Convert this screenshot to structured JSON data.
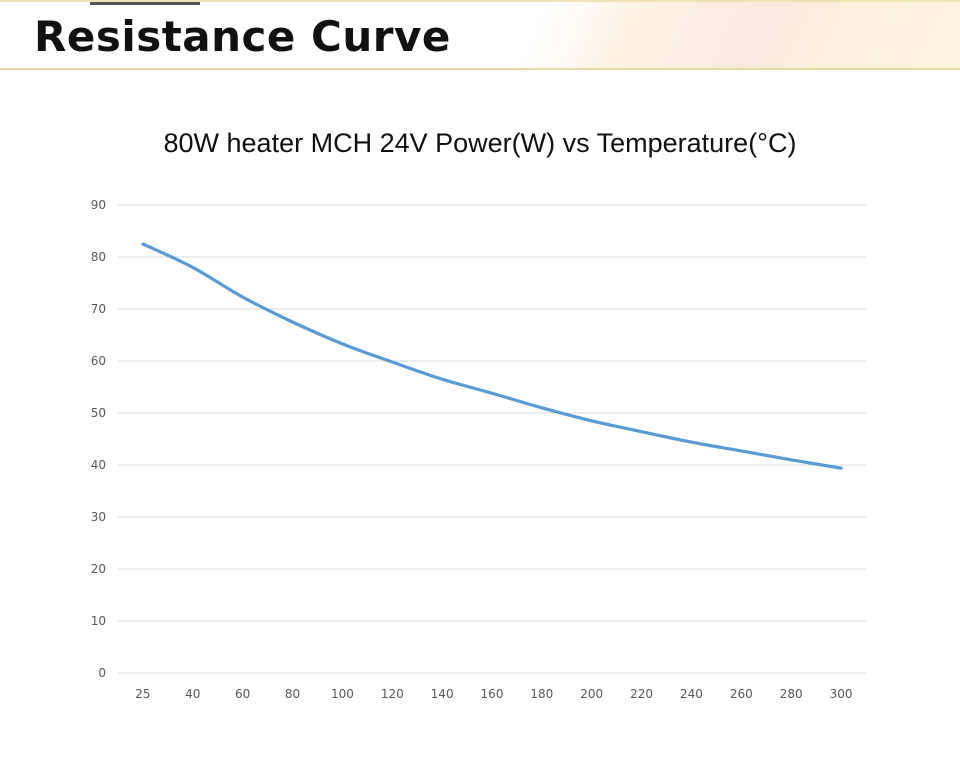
{
  "page": {
    "title": "Resistance Curve"
  },
  "chart_data": {
    "type": "line",
    "title": "80W heater MCH 24V Power(W) vs Temperature(°C)",
    "xlabel": "",
    "ylabel": "",
    "categories": [
      "25",
      "40",
      "60",
      "80",
      "100",
      "120",
      "140",
      "160",
      "180",
      "200",
      "220",
      "240",
      "260",
      "280",
      "300"
    ],
    "series": [
      {
        "name": "Power(W)",
        "color": "#5b9bd5",
        "values": [
          82.5,
          78,
          72.3,
          67.5,
          63.3,
          59.8,
          56.5,
          53.8,
          51,
          48.5,
          46.4,
          44.4,
          42.7,
          41,
          39.4
        ]
      }
    ],
    "ylim": [
      0,
      90
    ],
    "yticks": [
      0,
      10,
      20,
      30,
      40,
      50,
      60,
      70,
      80,
      90
    ],
    "grid": true,
    "legend": "none"
  }
}
